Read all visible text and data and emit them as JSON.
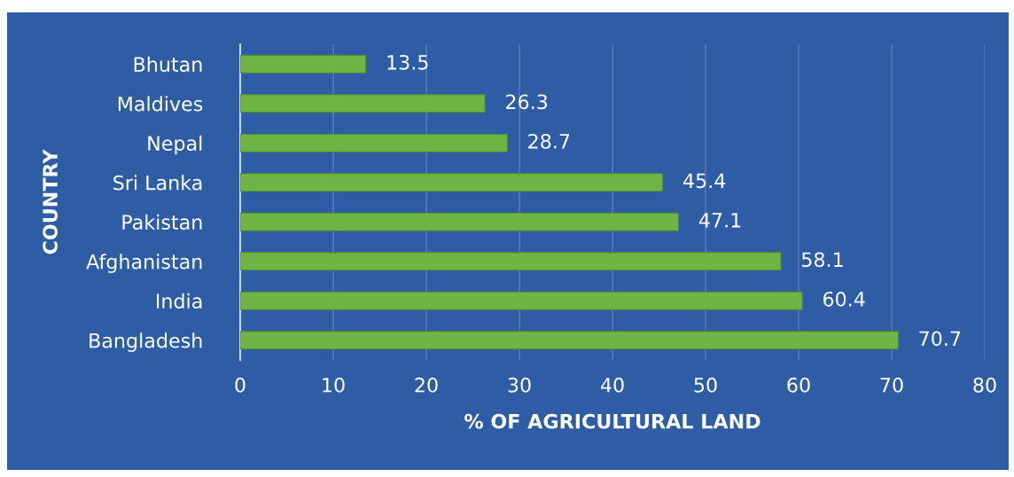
{
  "chart_data": {
    "type": "bar",
    "orientation": "horizontal",
    "xlabel": "% OF AGRICULTURAL LAND",
    "ylabel": "COUNTRY",
    "categories": [
      "Bhutan",
      "Maldives",
      "Nepal",
      "Sri Lanka",
      "Pakistan",
      "Afghanistan",
      "India",
      "Bangladesh"
    ],
    "values": [
      13.5,
      26.3,
      28.7,
      45.4,
      47.1,
      58.1,
      60.4,
      70.7
    ],
    "color": "#6fb545",
    "xlim": [
      0,
      80
    ],
    "xticks": [
      0,
      10,
      20,
      30,
      40,
      50,
      60,
      70,
      80
    ],
    "grid": "x",
    "data_labels": true
  }
}
